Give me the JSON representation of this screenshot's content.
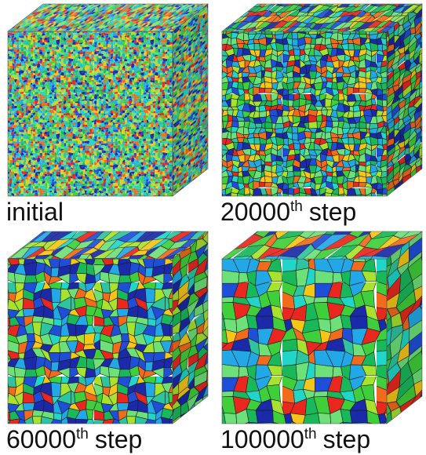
{
  "panels": [
    {
      "label": "initial"
    },
    {
      "label": "20000",
      "superscript": "th",
      "suffix": "step"
    },
    {
      "label": "60000",
      "superscript": "th",
      "suffix": "step"
    },
    {
      "label": "100000",
      "superscript": "th",
      "suffix": "step"
    }
  ]
}
